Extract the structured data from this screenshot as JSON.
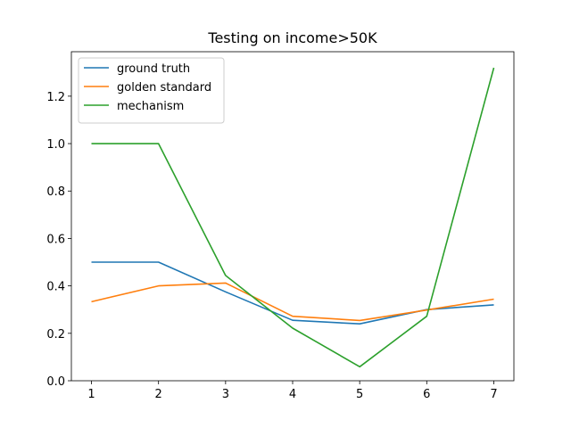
{
  "chart_data": {
    "type": "line",
    "title": "Testing on income>50K",
    "xlabel": "",
    "ylabel": "",
    "x": [
      1,
      2,
      3,
      4,
      5,
      6,
      7
    ],
    "xlim": [
      0.7,
      7.3
    ],
    "ylim": [
      0.0,
      1.3875
    ],
    "x_ticks": [
      1,
      2,
      3,
      4,
      5,
      6,
      7
    ],
    "y_ticks": [
      0.0,
      0.2,
      0.4,
      0.6,
      0.8,
      1.0,
      1.2
    ],
    "y_tick_labels": [
      "0.0",
      "0.2",
      "0.4",
      "0.6",
      "0.8",
      "1.0",
      "1.2"
    ],
    "grid": false,
    "legend_position": "upper-left",
    "series": [
      {
        "name": "ground truth",
        "color": "#1f77b4",
        "values": [
          0.5,
          0.5,
          0.375,
          0.255,
          0.24,
          0.3,
          0.32
        ]
      },
      {
        "name": "golden standard",
        "color": "#ff7f0e",
        "values": [
          0.333,
          0.4,
          0.412,
          0.272,
          0.254,
          0.298,
          0.344
        ]
      },
      {
        "name": "mechanism",
        "color": "#2ca02c",
        "values": [
          1.0,
          1.0,
          0.444,
          0.222,
          0.059,
          0.272,
          1.32
        ]
      }
    ]
  }
}
